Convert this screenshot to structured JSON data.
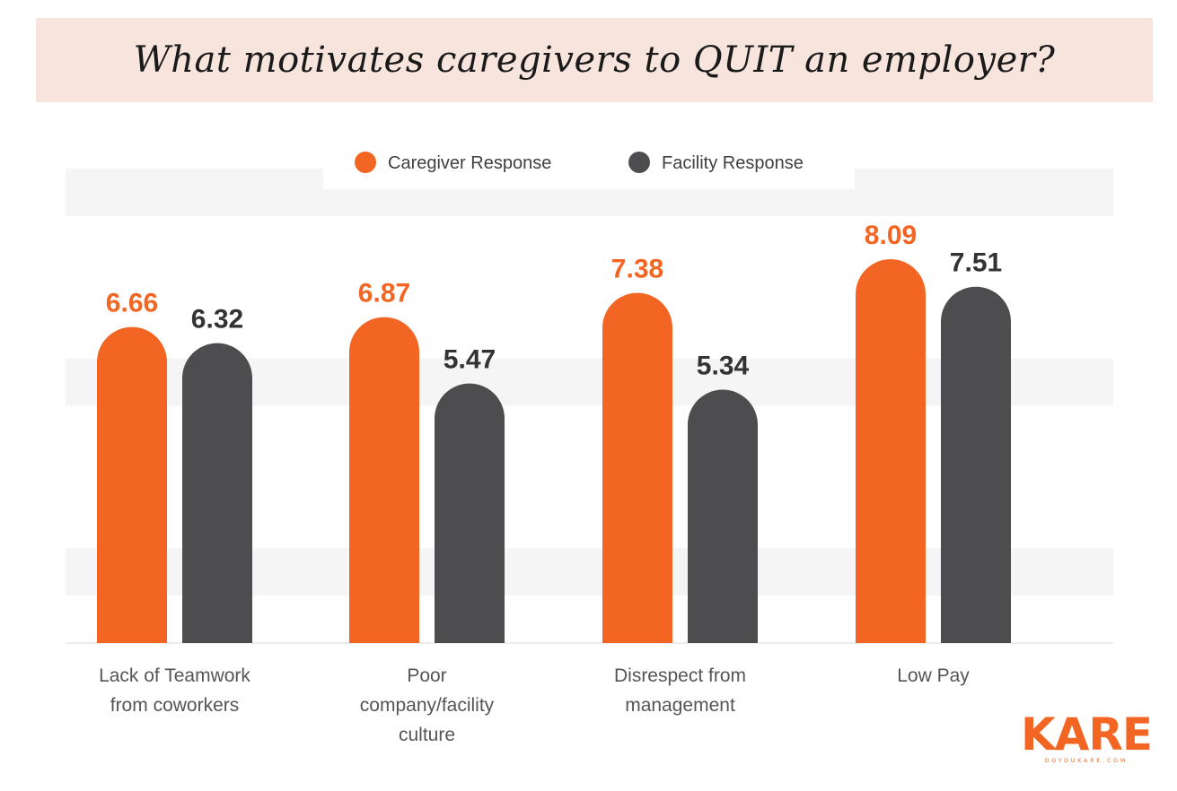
{
  "title": "What motivates caregivers to QUIT an employer?",
  "chart_data": {
    "type": "bar",
    "title": "What motivates caregivers to QUIT an employer?",
    "categories": [
      [
        "Lack of Teamwork",
        "from coworkers"
      ],
      [
        "Poor",
        "company/facility",
        "culture"
      ],
      [
        "Disrespect from",
        "management"
      ],
      [
        "Low Pay"
      ]
    ],
    "series": [
      {
        "name": "Caregiver Response",
        "color": "#f26522",
        "values": [
          6.66,
          6.87,
          7.38,
          8.09
        ],
        "labels": [
          "6.66",
          "6.87",
          "7.38",
          "8.09"
        ]
      },
      {
        "name": "Facility Response",
        "color": "#4d4d4f",
        "values": [
          6.32,
          5.47,
          5.34,
          7.51
        ],
        "labels": [
          "6.32",
          "5.47",
          "5.34",
          "7.51"
        ]
      }
    ],
    "ylim": [
      0,
      10
    ],
    "grid": true,
    "legend_position": "top-center",
    "colors": {
      "caregiver": "#f26522",
      "facility": "#4d4d4f",
      "band": "#f5f5f5"
    }
  },
  "logo": {
    "word": "KARE",
    "sub": "DOYOUKARE.COM"
  }
}
